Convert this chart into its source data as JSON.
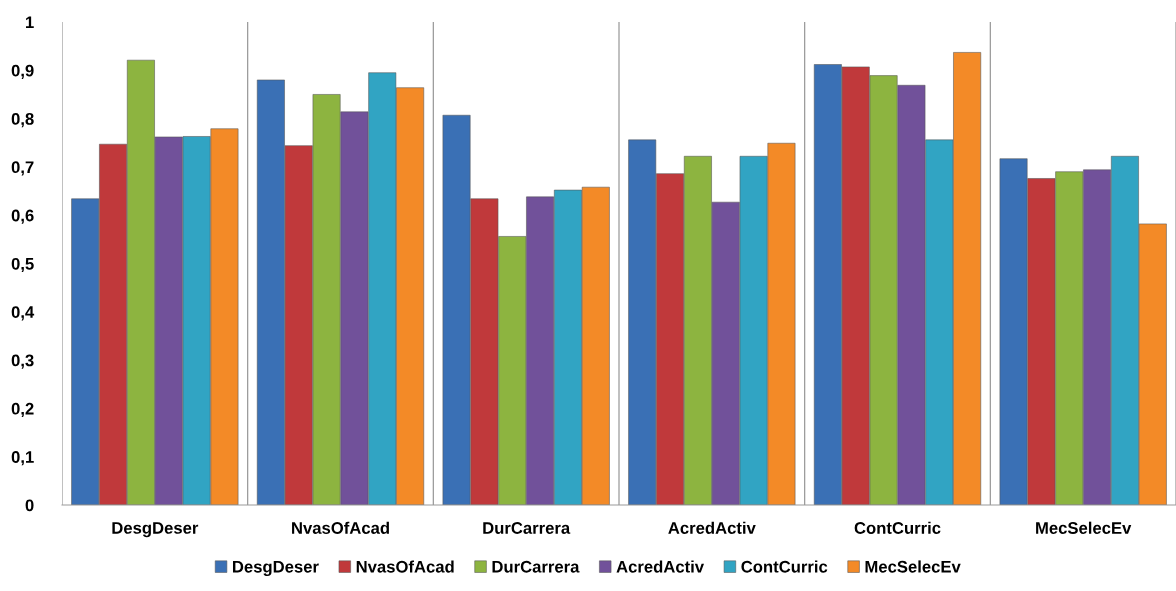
{
  "chart_data": {
    "type": "bar",
    "categories": [
      "DesgDeser",
      "NvasOfAcad",
      "DurCarrera",
      "AcredActiv",
      "ContCurric",
      "MecSelecEv"
    ],
    "series": [
      {
        "name": "DesgDeser",
        "color": "#3a70b5",
        "values": [
          0.634,
          0.88,
          0.807,
          0.756,
          0.912,
          0.717
        ]
      },
      {
        "name": "NvasOfAcad",
        "color": "#c0393b",
        "values": [
          0.747,
          0.744,
          0.634,
          0.686,
          0.907,
          0.676
        ]
      },
      {
        "name": "DurCarrera",
        "color": "#8db440",
        "values": [
          0.921,
          0.85,
          0.556,
          0.722,
          0.889,
          0.69
        ]
      },
      {
        "name": "AcredActiv",
        "color": "#71519a",
        "values": [
          0.762,
          0.814,
          0.638,
          0.627,
          0.869,
          0.694
        ]
      },
      {
        "name": "ContCurric",
        "color": "#31a4c3",
        "values": [
          0.763,
          0.895,
          0.652,
          0.722,
          0.756,
          0.722
        ]
      },
      {
        "name": "MecSelecEv",
        "color": "#f38a27",
        "values": [
          0.779,
          0.864,
          0.658,
          0.749,
          0.937,
          0.582
        ]
      }
    ],
    "ylim": [
      0,
      1
    ],
    "yticks": [
      0,
      {
        "value": 0.1,
        "label": "0,1"
      },
      {
        "value": 0.2,
        "label": "0,2"
      },
      {
        "value": 0.3,
        "label": "0,3"
      },
      {
        "value": 0.4,
        "label": "0,4"
      },
      {
        "value": 0.5,
        "label": "0,5"
      },
      {
        "value": 0.6,
        "label": "0,6"
      },
      {
        "value": 0.7,
        "label": "0,7"
      },
      {
        "value": 0.8,
        "label": "0,8"
      },
      {
        "value": 0.9,
        "label": "0,9"
      },
      1
    ],
    "grid": "x",
    "legend": "bottom"
  }
}
